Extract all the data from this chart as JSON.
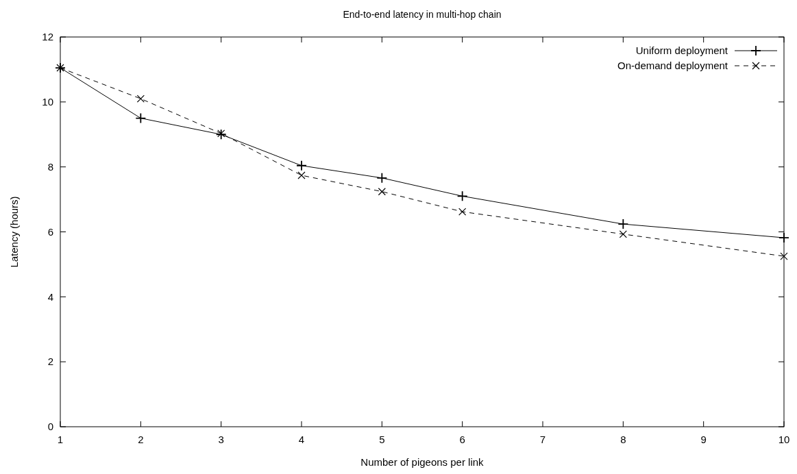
{
  "chart_data": {
    "type": "line",
    "title": "End-to-end latency in multi-hop chain",
    "xlabel": "Number of pigeons per link",
    "ylabel": "Latency (hours)",
    "x": [
      1,
      2,
      3,
      4,
      5,
      6,
      8,
      10
    ],
    "series": [
      {
        "name": "Uniform deployment",
        "color": "#000000",
        "marker": "plus",
        "line_style": "solid",
        "values": [
          11.05,
          9.5,
          9.0,
          8.04,
          7.66,
          7.1,
          6.24,
          5.82
        ]
      },
      {
        "name": "On-demand deployment",
        "color": "#000000",
        "marker": "cross",
        "line_style": "dashed",
        "values": [
          11.05,
          10.1,
          9.03,
          7.74,
          7.24,
          6.62,
          5.93,
          5.25
        ]
      }
    ],
    "xlim": [
      1,
      10
    ],
    "xticks": [
      1,
      2,
      3,
      4,
      5,
      6,
      7,
      8,
      9,
      10
    ],
    "ylim": [
      0,
      12
    ],
    "yticks": [
      0,
      2,
      4,
      6,
      8,
      10,
      12
    ],
    "grid": false,
    "legend": "top right"
  }
}
